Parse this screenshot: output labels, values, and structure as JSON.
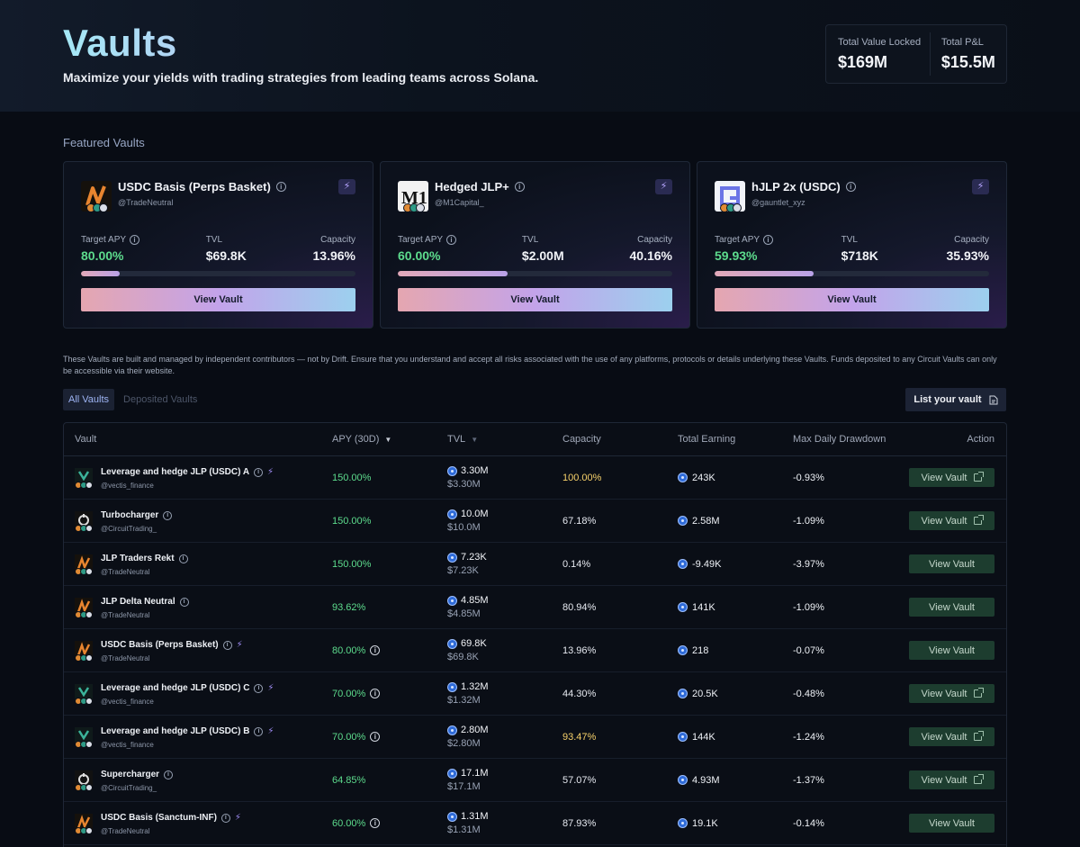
{
  "header": {
    "title": "Vaults",
    "subtitle": "Maximize your yields with trading strategies from leading teams across Solana."
  },
  "stats": {
    "tvl_label": "Total Value Locked",
    "tvl_value": "$169M",
    "pnl_label": "Total P&L",
    "pnl_value": "$15.5M"
  },
  "featured": {
    "title": "Featured Vaults",
    "cards": [
      {
        "name": "USDC Basis (Perps Basket)",
        "handle": "@TradeNeutral",
        "apy_label": "Target APY",
        "apy": "80.00%",
        "tvl_label": "TVL",
        "tvl": "$69.8K",
        "cap_label": "Capacity",
        "capacity": "13.96%",
        "capacity_fraction": 0.1396,
        "button": "View Vault",
        "logo_icon": "trade-neutral-logo-icon"
      },
      {
        "name": "Hedged JLP+",
        "handle": "@M1Capital_",
        "apy_label": "Target APY",
        "apy": "60.00%",
        "tvl_label": "TVL",
        "tvl": "$2.00M",
        "cap_label": "Capacity",
        "capacity": "40.16%",
        "capacity_fraction": 0.4016,
        "button": "View Vault",
        "logo_icon": "m1-capital-logo-icon"
      },
      {
        "name": "hJLP 2x (USDC)",
        "handle": "@gauntlet_xyz",
        "apy_label": "Target APY",
        "apy": "59.93%",
        "tvl_label": "TVL",
        "tvl": "$718K",
        "cap_label": "Capacity",
        "capacity": "35.93%",
        "capacity_fraction": 0.3593,
        "button": "View Vault",
        "logo_icon": "gauntlet-logo-icon"
      }
    ]
  },
  "disclaimer": "These Vaults are built and managed by independent contributors — not by Drift. Ensure that you understand and accept all risks associated with the use of any platforms, protocols or details underlying these Vaults. Funds deposited to any Circuit Vaults can only be accessible via their website.",
  "tabs": {
    "all": "All Vaults",
    "deposited": "Deposited Vaults",
    "list_button": "List your vault"
  },
  "table": {
    "headers": {
      "vault": "Vault",
      "apy": "APY (30D)",
      "tvl": "TVL",
      "capacity": "Capacity",
      "earning": "Total Earning",
      "drawdown": "Max Daily Drawdown",
      "action": "Action"
    },
    "rows": [
      {
        "name": "Leverage and hedge JLP (USDC) A",
        "handle": "@vectis_finance",
        "apy": "150.00%",
        "tvl": "3.30M",
        "tvl_usd": "$3.30M",
        "capacity": "100.00%",
        "earning": "243K",
        "drawdown": "-0.93%",
        "button": "View Vault"
      },
      {
        "name": "Turbocharger",
        "handle": "@CircuitTrading_",
        "apy": "150.00%",
        "tvl": "10.0M",
        "tvl_usd": "$10.0M",
        "capacity": "67.18%",
        "earning": "2.58M",
        "drawdown": "-1.09%",
        "button": "View Vault"
      },
      {
        "name": "JLP Traders Rekt",
        "handle": "@TradeNeutral",
        "apy": "150.00%",
        "tvl": "7.23K",
        "tvl_usd": "$7.23K",
        "capacity": "0.14%",
        "earning": "-9.49K",
        "drawdown": "-3.97%",
        "button": "View Vault"
      },
      {
        "name": "JLP Delta Neutral",
        "handle": "@TradeNeutral",
        "apy": "93.62%",
        "tvl": "4.85M",
        "tvl_usd": "$4.85M",
        "capacity": "80.94%",
        "earning": "141K",
        "drawdown": "-1.09%",
        "button": "View Vault"
      },
      {
        "name": "USDC Basis (Perps Basket)",
        "handle": "@TradeNeutral",
        "apy": "80.00%",
        "tvl": "69.8K",
        "tvl_usd": "$69.8K",
        "capacity": "13.96%",
        "earning": "218",
        "drawdown": "-0.07%",
        "button": "View Vault"
      },
      {
        "name": "Leverage and hedge JLP (USDC) C",
        "handle": "@vectis_finance",
        "apy": "70.00%",
        "tvl": "1.32M",
        "tvl_usd": "$1.32M",
        "capacity": "44.30%",
        "earning": "20.5K",
        "drawdown": "-0.48%",
        "button": "View Vault"
      },
      {
        "name": "Leverage and hedge JLP (USDC) B",
        "handle": "@vectis_finance",
        "apy": "70.00%",
        "tvl": "2.80M",
        "tvl_usd": "$2.80M",
        "capacity": "93.47%",
        "earning": "144K",
        "drawdown": "-1.24%",
        "button": "View Vault"
      },
      {
        "name": "Supercharger",
        "handle": "@CircuitTrading_",
        "apy": "64.85%",
        "tvl": "17.1M",
        "tvl_usd": "$17.1M",
        "capacity": "57.07%",
        "earning": "4.93M",
        "drawdown": "-1.37%",
        "button": "View Vault"
      },
      {
        "name": "USDC Basis (Sanctum-INF)",
        "handle": "@TradeNeutral",
        "apy": "60.00%",
        "tvl": "1.31M",
        "tvl_usd": "$1.31M",
        "capacity": "87.93%",
        "earning": "19.1K",
        "drawdown": "-0.14%",
        "button": "View Vault"
      }
    ]
  },
  "colors": {
    "accent_green": "#5ddc8d",
    "warning_yellow": "#f7d16a",
    "background": "#080c14",
    "button_green": "#1d3d2f"
  }
}
